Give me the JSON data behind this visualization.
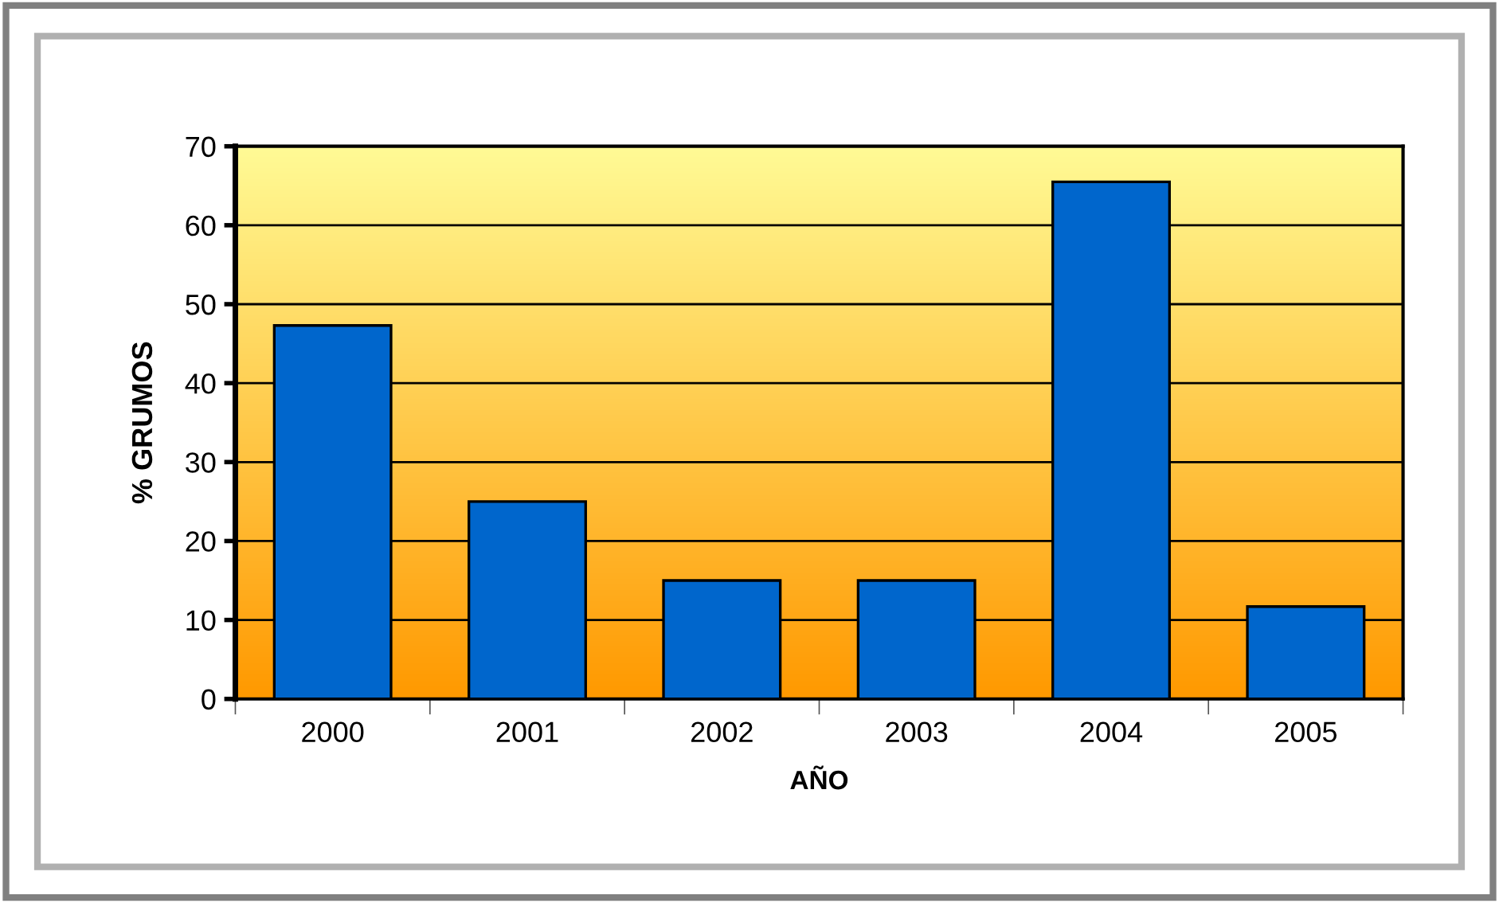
{
  "chart_data": {
    "type": "bar",
    "xlabel": "AÑO",
    "ylabel": "% GRUMOS",
    "categories": [
      "2000",
      "2001",
      "2002",
      "2003",
      "2004",
      "2005"
    ],
    "values": [
      47.3,
      25,
      15,
      15,
      65.5,
      11.7
    ],
    "color": "#0066cc",
    "ylim": [
      0,
      70
    ],
    "yticks": [
      0,
      10,
      20,
      30,
      40,
      50,
      60,
      70
    ],
    "grid": "y"
  }
}
